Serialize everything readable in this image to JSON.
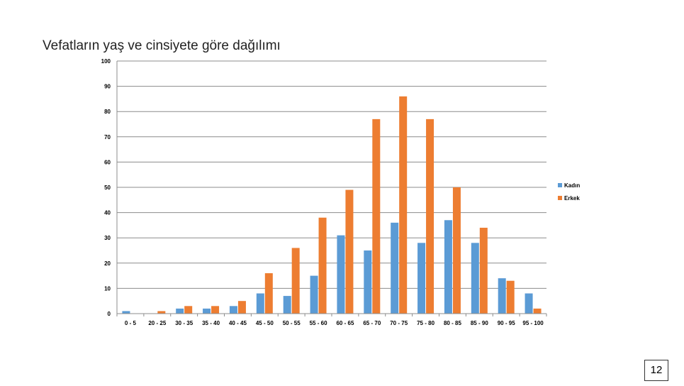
{
  "slide": {
    "title": "Vefatların yaş ve cinsiyete göre dağılımı",
    "page_number": "12"
  },
  "chart_data": {
    "type": "bar",
    "title": "Vefatların yaş ve cinsiyete göre dağılımı",
    "xlabel": "",
    "ylabel": "",
    "ylim": [
      0,
      100
    ],
    "yticks": [
      0,
      10,
      20,
      30,
      40,
      50,
      60,
      70,
      80,
      90,
      100
    ],
    "grid": true,
    "legend": "right",
    "categories": [
      "0 - 5",
      "20 - 25",
      "30 - 35",
      "35 - 40",
      "40 - 45",
      "45 - 50",
      "50 - 55",
      "55 - 60",
      "60 - 65",
      "65 - 70",
      "70 - 75",
      "75 - 80",
      "80 - 85",
      "85 - 90",
      "90 - 95",
      "95 - 100"
    ],
    "series": [
      {
        "name": "Kadın",
        "color": "#5B9BD5",
        "values": [
          1,
          0,
          2,
          2,
          3,
          8,
          7,
          15,
          31,
          25,
          36,
          28,
          37,
          28,
          14,
          8
        ]
      },
      {
        "name": "Erkek",
        "color": "#ED7D31",
        "values": [
          0,
          1,
          3,
          3,
          5,
          16,
          26,
          38,
          49,
          77,
          86,
          77,
          50,
          34,
          13,
          2
        ]
      }
    ]
  }
}
